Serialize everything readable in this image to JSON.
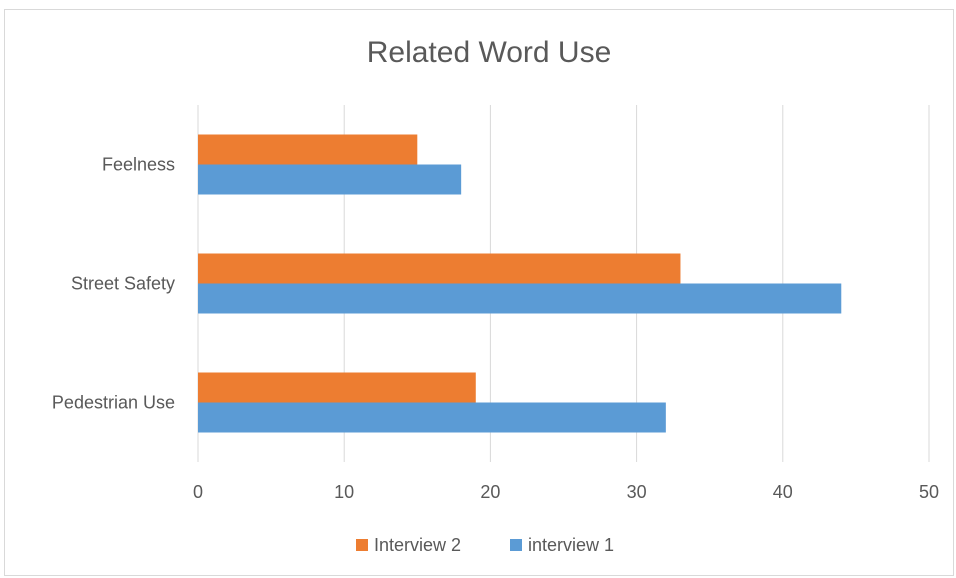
{
  "chart_data": {
    "type": "bar",
    "orientation": "horizontal",
    "title": "Related Word Use",
    "xlabel": "",
    "ylabel": "",
    "categories": [
      "Pedestrian Use",
      "Street Safety",
      "Feelness"
    ],
    "series": [
      {
        "name": "interview 1",
        "color": "#5b9bd5",
        "values": [
          32,
          44,
          18
        ]
      },
      {
        "name": "Interview 2",
        "color": "#ed7d31",
        "values": [
          19,
          33,
          15
        ]
      }
    ],
    "xlim": [
      0,
      50
    ],
    "xticks": [
      "0",
      "10",
      "20",
      "30",
      "40",
      "50"
    ],
    "grid": "vertical",
    "legend_position": "bottom",
    "legend_order": [
      "Interview 2",
      "interview 1"
    ]
  }
}
